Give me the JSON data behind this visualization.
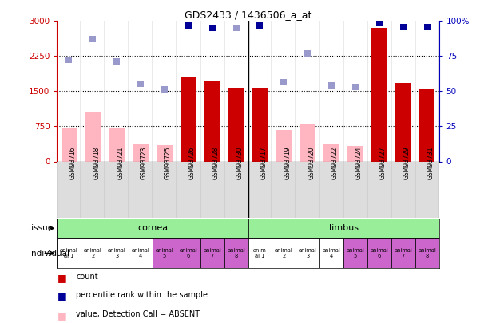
{
  "title": "GDS2433 / 1436506_a_at",
  "samples": [
    "GSM93716",
    "GSM93718",
    "GSM93721",
    "GSM93723",
    "GSM93725",
    "GSM93726",
    "GSM93728",
    "GSM93730",
    "GSM93717",
    "GSM93719",
    "GSM93720",
    "GSM93722",
    "GSM93724",
    "GSM93727",
    "GSM93729",
    "GSM93731"
  ],
  "count_values": [
    null,
    null,
    null,
    null,
    null,
    1800,
    1720,
    1570,
    1570,
    null,
    null,
    null,
    null,
    2850,
    1670,
    1560
  ],
  "value_absent": [
    700,
    1050,
    700,
    380,
    350,
    null,
    null,
    null,
    null,
    680,
    800,
    380,
    330,
    null,
    null,
    null
  ],
  "rank_present_left": [
    null,
    null,
    null,
    null,
    null,
    2900,
    2850,
    null,
    2900,
    null,
    null,
    null,
    null,
    2950,
    2870,
    2870
  ],
  "rank_absent_left": [
    2170,
    2620,
    2130,
    1660,
    1540,
    null,
    null,
    2850,
    null,
    1700,
    2300,
    1620,
    1590,
    null,
    null,
    null
  ],
  "ylim_left": [
    0,
    3000
  ],
  "ylim_right": [
    0,
    100
  ],
  "yticks_left": [
    0,
    750,
    1500,
    2250,
    3000
  ],
  "yticks_right": [
    0,
    25,
    50,
    75,
    100
  ],
  "individual_labels": [
    "animal\nal 1",
    "animal\n2",
    "animal\n3",
    "animal\n4",
    "animal\n5",
    "animal\n6",
    "animal\n7",
    "animal\n8",
    "anim\nal 1",
    "animal\n2",
    "animal\n3",
    "animal\n4",
    "animal\n5",
    "animal\n6",
    "animal\n7",
    "animal\n8"
  ],
  "individual_colors": [
    "#FFFFFF",
    "#FFFFFF",
    "#FFFFFF",
    "#FFFFFF",
    "#CC66CC",
    "#CC66CC",
    "#CC66CC",
    "#CC66CC",
    "#FFFFFF",
    "#FFFFFF",
    "#FFFFFF",
    "#FFFFFF",
    "#CC66CC",
    "#CC66CC",
    "#CC66CC",
    "#CC66CC"
  ],
  "color_count": "#CC0000",
  "color_absent_val": "#FFB6C1",
  "color_rank_present": "#000099",
  "color_rank_absent": "#9999CC",
  "bg_color": "#FFFFFF",
  "tissue_color": "#99EE99",
  "xtick_bg": "#DDDDDD",
  "bar_width": 0.65,
  "sq_size": 40,
  "left_tick_color": "#CC0000",
  "right_tick_color": "#0000BB"
}
